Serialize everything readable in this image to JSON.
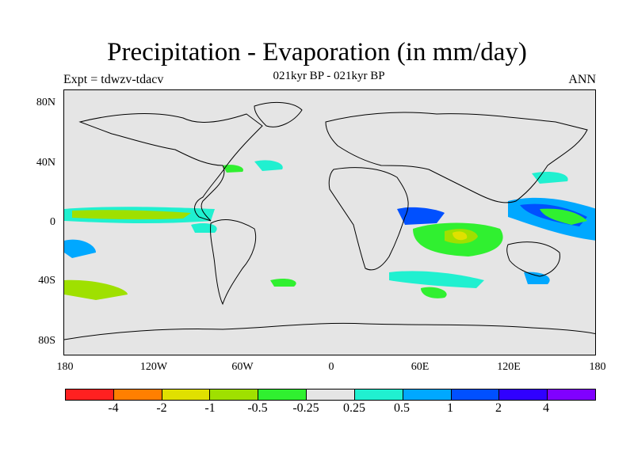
{
  "title": "Precipitation - Evaporation (in mm/day)",
  "subtitle": "021kyr BP - 021kyr BP",
  "left_label": "Expt = tdwzv-tdacv",
  "right_label": "ANN",
  "y_ticks": [
    "80N",
    "40N",
    "0",
    "40S",
    "80S"
  ],
  "x_ticks": [
    "180",
    "120W",
    "60W",
    "0",
    "60E",
    "120E",
    "180"
  ],
  "colorbar": {
    "labels": [
      "-4",
      "-2",
      "-1",
      "-0.5",
      "-0.25",
      "0.25",
      "0.5",
      "1",
      "2",
      "4"
    ],
    "colors": [
      "#ff2020",
      "#ff7f00",
      "#e0e000",
      "#9fe000",
      "#30f030",
      "#e5e5e5",
      "#20f0d0",
      "#00a8ff",
      "#0050ff",
      "#3000ff",
      "#8000ff"
    ]
  }
}
